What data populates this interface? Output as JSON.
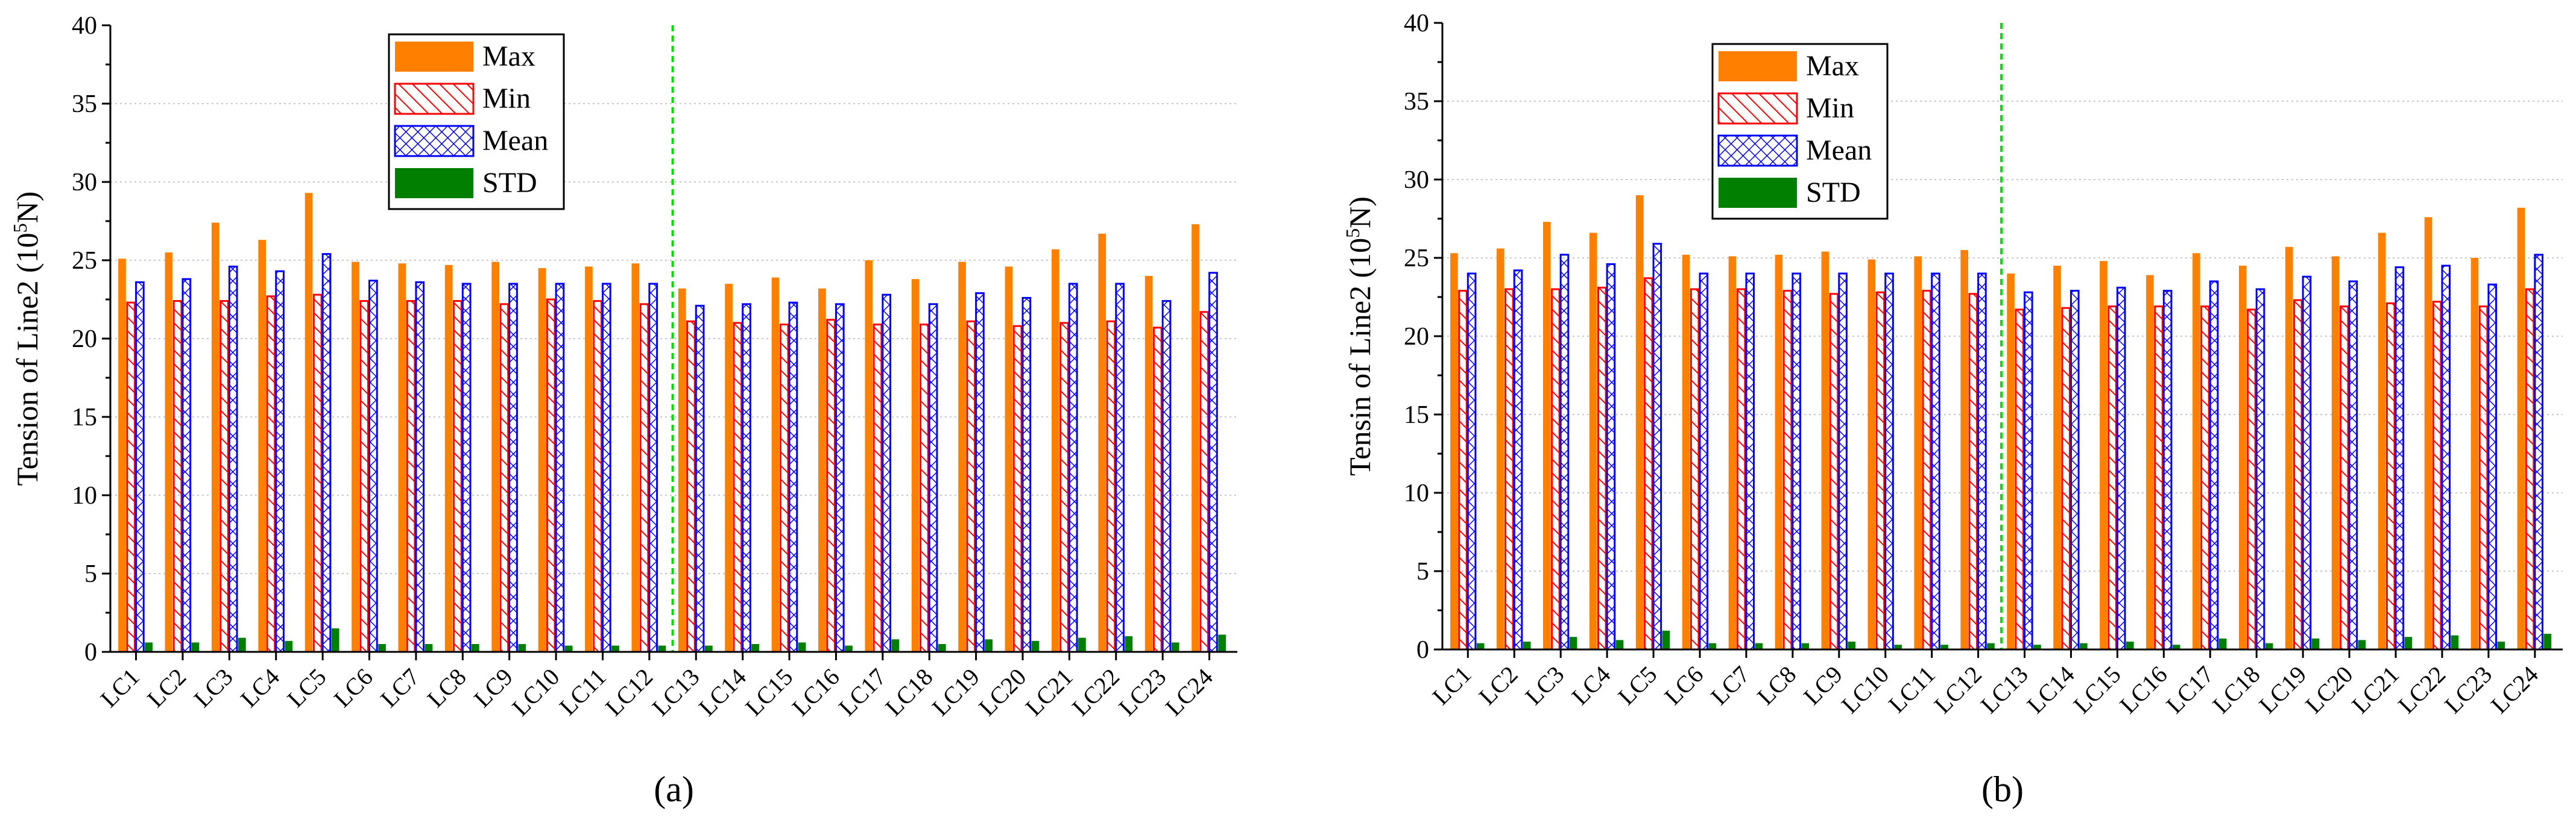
{
  "colors": {
    "max": "#ff8000",
    "min": "#ff0000",
    "mean": "#0000ff",
    "std": "#007f00",
    "divider": "#00dd00",
    "grid": "#c8c8c8"
  },
  "chart_data": [
    {
      "type": "bar",
      "panel_label": "(a)",
      "ylabel_prefix": "Tension of Line2 (10",
      "ylabel_exponent": "5",
      "ylabel_suffix": "N)",
      "ylim": [
        0,
        40
      ],
      "yticks": [
        "0",
        "5",
        "10",
        "15",
        "20",
        "25",
        "30",
        "35",
        "40"
      ],
      "categories": [
        "LC1",
        "LC2",
        "LC3",
        "LC4",
        "LC5",
        "LC6",
        "LC7",
        "LC8",
        "LC9",
        "LC10",
        "LC11",
        "LC12",
        "LC13",
        "LC14",
        "LC15",
        "LC16",
        "LC17",
        "LC18",
        "LC19",
        "LC20",
        "LC21",
        "LC22",
        "LC23",
        "LC24"
      ],
      "divider_after_category": "LC12",
      "legend": [
        "Max",
        "Min",
        "Mean",
        "STD"
      ],
      "series": [
        {
          "name": "Max",
          "values": [
            25.1,
            25.5,
            27.4,
            26.3,
            29.3,
            24.9,
            24.8,
            24.7,
            24.9,
            24.5,
            24.6,
            24.8,
            23.2,
            23.5,
            23.9,
            23.2,
            25.0,
            23.8,
            24.9,
            24.6,
            25.7,
            26.7,
            24.0,
            27.3
          ]
        },
        {
          "name": "Min",
          "values": [
            22.3,
            22.4,
            22.4,
            22.7,
            22.8,
            22.4,
            22.4,
            22.4,
            22.2,
            22.5,
            22.4,
            22.2,
            21.1,
            21.0,
            20.9,
            21.2,
            20.9,
            20.9,
            21.1,
            20.8,
            21.0,
            21.1,
            20.7,
            21.7
          ]
        },
        {
          "name": "Mean",
          "values": [
            23.6,
            23.8,
            24.6,
            24.3,
            25.4,
            23.7,
            23.6,
            23.5,
            23.5,
            23.5,
            23.5,
            23.5,
            22.1,
            22.2,
            22.3,
            22.2,
            22.8,
            22.2,
            22.9,
            22.6,
            23.5,
            23.5,
            22.4,
            24.2
          ]
        },
        {
          "name": "STD",
          "values": [
            0.6,
            0.6,
            0.9,
            0.7,
            1.5,
            0.5,
            0.5,
            0.5,
            0.5,
            0.4,
            0.4,
            0.4,
            0.4,
            0.5,
            0.6,
            0.4,
            0.8,
            0.5,
            0.8,
            0.7,
            0.9,
            1.0,
            0.6,
            1.1
          ]
        }
      ]
    },
    {
      "type": "bar",
      "panel_label": "(b)",
      "ylabel_prefix": "Tensin of Line2 (10",
      "ylabel_exponent": "5",
      "ylabel_suffix": "N)",
      "ylim": [
        0,
        40
      ],
      "yticks": [
        "0",
        "5",
        "10",
        "15",
        "20",
        "25",
        "30",
        "35",
        "40"
      ],
      "categories": [
        "LC1",
        "LC2",
        "LC3",
        "LC4",
        "LC5",
        "LC6",
        "LC7",
        "LC8",
        "LC9",
        "LC10",
        "LC11",
        "LC12",
        "LC13",
        "LC14",
        "LC15",
        "LC16",
        "LC17",
        "LC18",
        "LC19",
        "LC20",
        "LC21",
        "LC22",
        "LC23",
        "LC24"
      ],
      "divider_after_category": "LC12",
      "legend": [
        "Max",
        "Min",
        "Mean",
        "STD"
      ],
      "series": [
        {
          "name": "Max",
          "values": [
            25.3,
            25.6,
            27.3,
            26.6,
            29.0,
            25.2,
            25.1,
            25.2,
            25.4,
            24.9,
            25.1,
            25.5,
            24.0,
            24.5,
            24.8,
            23.9,
            25.3,
            24.5,
            25.7,
            25.1,
            26.6,
            27.6,
            25.0,
            28.2
          ]
        },
        {
          "name": "Min",
          "values": [
            22.9,
            23.0,
            23.0,
            23.1,
            23.7,
            23.0,
            23.0,
            22.9,
            22.7,
            22.8,
            22.9,
            22.7,
            21.7,
            21.8,
            21.9,
            21.9,
            21.9,
            21.7,
            22.3,
            21.9,
            22.1,
            22.2,
            21.9,
            23.0
          ]
        },
        {
          "name": "Mean",
          "values": [
            24.0,
            24.2,
            25.2,
            24.6,
            25.9,
            24.0,
            24.0,
            24.0,
            24.0,
            24.0,
            24.0,
            24.0,
            22.8,
            22.9,
            23.1,
            22.9,
            23.5,
            23.0,
            23.8,
            23.5,
            24.4,
            24.5,
            23.3,
            25.2
          ]
        },
        {
          "name": "STD",
          "values": [
            0.4,
            0.5,
            0.8,
            0.6,
            1.2,
            0.4,
            0.4,
            0.4,
            0.5,
            0.3,
            0.3,
            0.4,
            0.3,
            0.4,
            0.5,
            0.3,
            0.7,
            0.4,
            0.7,
            0.6,
            0.8,
            0.9,
            0.5,
            1.0
          ]
        }
      ]
    }
  ]
}
